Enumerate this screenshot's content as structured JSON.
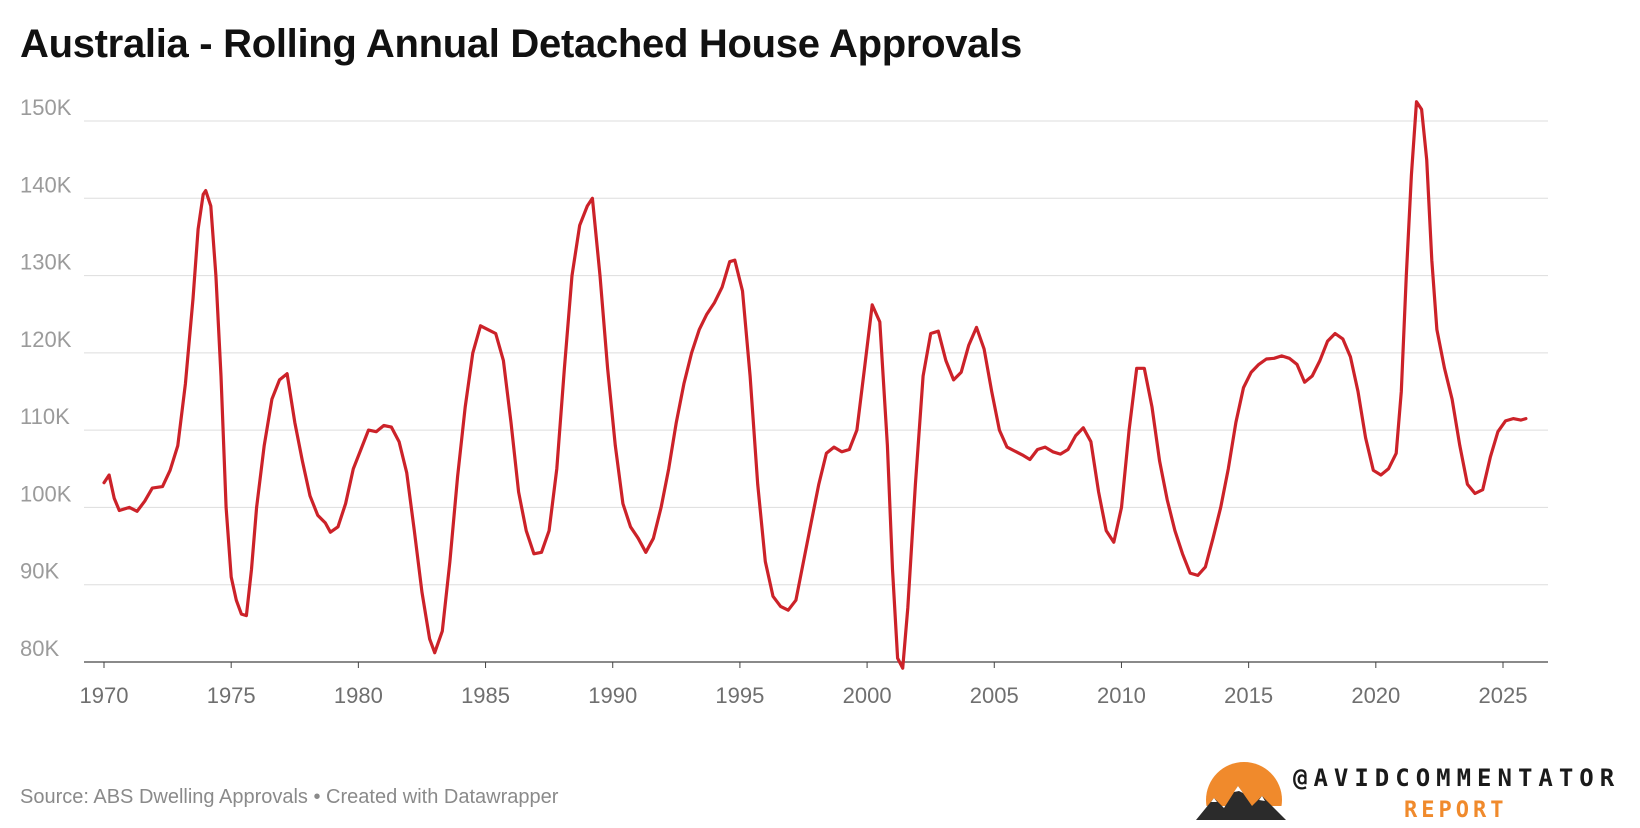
{
  "title": "Australia - Rolling Annual Detached House Approvals",
  "source": "Source: ABS Dwelling Approvals • Created with Datawrapper",
  "logo": {
    "handle": "@AVIDCOMMENTATOR",
    "report": "REPORT",
    "icon": "mountain-sun-icon",
    "sun_color": "#f08a2c"
  },
  "colors": {
    "line": "#cc2229",
    "grid": "#dddddd"
  },
  "chart_data": {
    "type": "line",
    "title": "Australia - Rolling Annual Detached House Approvals",
    "xlabel": "",
    "ylabel": "",
    "xlim": [
      1970,
      2026
    ],
    "ylim": [
      80000,
      150000
    ],
    "grid": true,
    "x_ticks": [
      "1970",
      "1975",
      "1980",
      "1985",
      "1990",
      "1995",
      "2000",
      "2005",
      "2010",
      "2015",
      "2020",
      "2025"
    ],
    "y_ticks": [
      "80K",
      "90K",
      "100K",
      "110K",
      "120K",
      "130K",
      "140K",
      "150K"
    ],
    "series": [
      {
        "color": "#cc2229",
        "points": [
          [
            1970.0,
            103200
          ],
          [
            1970.2,
            104200
          ],
          [
            1970.4,
            101200
          ],
          [
            1970.6,
            99600
          ],
          [
            1971.0,
            100000
          ],
          [
            1971.3,
            99500
          ],
          [
            1971.6,
            100800
          ],
          [
            1971.9,
            102500
          ],
          [
            1972.3,
            102700
          ],
          [
            1972.6,
            104800
          ],
          [
            1972.9,
            108000
          ],
          [
            1973.2,
            116000
          ],
          [
            1973.5,
            127000
          ],
          [
            1973.7,
            136000
          ],
          [
            1973.9,
            140500
          ],
          [
            1974.0,
            141000
          ],
          [
            1974.2,
            139000
          ],
          [
            1974.4,
            130000
          ],
          [
            1974.6,
            117000
          ],
          [
            1974.8,
            100000
          ],
          [
            1975.0,
            91000
          ],
          [
            1975.2,
            88000
          ],
          [
            1975.4,
            86200
          ],
          [
            1975.6,
            86000
          ],
          [
            1975.8,
            92000
          ],
          [
            1976.0,
            100000
          ],
          [
            1976.3,
            108000
          ],
          [
            1976.6,
            114000
          ],
          [
            1976.9,
            116500
          ],
          [
            1977.2,
            117300
          ],
          [
            1977.5,
            111000
          ],
          [
            1977.8,
            106000
          ],
          [
            1978.1,
            101500
          ],
          [
            1978.4,
            99000
          ],
          [
            1978.7,
            98000
          ],
          [
            1978.9,
            96800
          ],
          [
            1979.2,
            97500
          ],
          [
            1979.5,
            100500
          ],
          [
            1979.8,
            105000
          ],
          [
            1980.1,
            107500
          ],
          [
            1980.4,
            110000
          ],
          [
            1980.7,
            109800
          ],
          [
            1981.0,
            110600
          ],
          [
            1981.3,
            110400
          ],
          [
            1981.6,
            108500
          ],
          [
            1981.9,
            104500
          ],
          [
            1982.2,
            97000
          ],
          [
            1982.5,
            89000
          ],
          [
            1982.8,
            83000
          ],
          [
            1983.0,
            81200
          ],
          [
            1983.3,
            84000
          ],
          [
            1983.6,
            93000
          ],
          [
            1983.9,
            104000
          ],
          [
            1984.2,
            113000
          ],
          [
            1984.5,
            120000
          ],
          [
            1984.8,
            123500
          ],
          [
            1985.1,
            123000
          ],
          [
            1985.4,
            122500
          ],
          [
            1985.7,
            119000
          ],
          [
            1986.0,
            111000
          ],
          [
            1986.3,
            102000
          ],
          [
            1986.6,
            97000
          ],
          [
            1986.9,
            94000
          ],
          [
            1987.2,
            94200
          ],
          [
            1987.5,
            97000
          ],
          [
            1987.8,
            105000
          ],
          [
            1988.1,
            118000
          ],
          [
            1988.4,
            130000
          ],
          [
            1988.7,
            136500
          ],
          [
            1989.0,
            139000
          ],
          [
            1989.2,
            140000
          ],
          [
            1989.5,
            130000
          ],
          [
            1989.8,
            118000
          ],
          [
            1990.1,
            108000
          ],
          [
            1990.4,
            100500
          ],
          [
            1990.7,
            97500
          ],
          [
            1991.0,
            96000
          ],
          [
            1991.3,
            94200
          ],
          [
            1991.6,
            96000
          ],
          [
            1991.9,
            100000
          ],
          [
            1992.2,
            105000
          ],
          [
            1992.5,
            111000
          ],
          [
            1992.8,
            116000
          ],
          [
            1993.1,
            120000
          ],
          [
            1993.4,
            123000
          ],
          [
            1993.7,
            125000
          ],
          [
            1994.0,
            126500
          ],
          [
            1994.3,
            128500
          ],
          [
            1994.6,
            131800
          ],
          [
            1994.8,
            132000
          ],
          [
            1995.1,
            128000
          ],
          [
            1995.4,
            117000
          ],
          [
            1995.7,
            103000
          ],
          [
            1996.0,
            93000
          ],
          [
            1996.3,
            88500
          ],
          [
            1996.6,
            87200
          ],
          [
            1996.9,
            86700
          ],
          [
            1997.2,
            88000
          ],
          [
            1997.5,
            93000
          ],
          [
            1997.8,
            98000
          ],
          [
            1998.1,
            103000
          ],
          [
            1998.4,
            107000
          ],
          [
            1998.7,
            107800
          ],
          [
            1999.0,
            107200
          ],
          [
            1999.3,
            107500
          ],
          [
            1999.6,
            110000
          ],
          [
            1999.9,
            118000
          ],
          [
            2000.2,
            126200
          ],
          [
            2000.5,
            124000
          ],
          [
            2000.8,
            108000
          ],
          [
            2001.0,
            92000
          ],
          [
            2001.2,
            80500
          ],
          [
            2001.4,
            79200
          ],
          [
            2001.6,
            87000
          ],
          [
            2001.9,
            103000
          ],
          [
            2002.2,
            117000
          ],
          [
            2002.5,
            122500
          ],
          [
            2002.8,
            122800
          ],
          [
            2003.1,
            119000
          ],
          [
            2003.4,
            116500
          ],
          [
            2003.7,
            117500
          ],
          [
            2004.0,
            121000
          ],
          [
            2004.3,
            123300
          ],
          [
            2004.6,
            120500
          ],
          [
            2004.9,
            115000
          ],
          [
            2005.2,
            110000
          ],
          [
            2005.5,
            107800
          ],
          [
            2005.8,
            107300
          ],
          [
            2006.1,
            106800
          ],
          [
            2006.4,
            106200
          ],
          [
            2006.7,
            107500
          ],
          [
            2007.0,
            107800
          ],
          [
            2007.3,
            107200
          ],
          [
            2007.6,
            106900
          ],
          [
            2007.9,
            107500
          ],
          [
            2008.2,
            109300
          ],
          [
            2008.5,
            110300
          ],
          [
            2008.8,
            108500
          ],
          [
            2009.1,
            102000
          ],
          [
            2009.4,
            97000
          ],
          [
            2009.7,
            95500
          ],
          [
            2010.0,
            100000
          ],
          [
            2010.3,
            110000
          ],
          [
            2010.6,
            118000
          ],
          [
            2010.9,
            118000
          ],
          [
            2011.2,
            113000
          ],
          [
            2011.5,
            106000
          ],
          [
            2011.8,
            101000
          ],
          [
            2012.1,
            97000
          ],
          [
            2012.4,
            94000
          ],
          [
            2012.7,
            91500
          ],
          [
            2013.0,
            91200
          ],
          [
            2013.3,
            92300
          ],
          [
            2013.6,
            96000
          ],
          [
            2013.9,
            100000
          ],
          [
            2014.2,
            105000
          ],
          [
            2014.5,
            111000
          ],
          [
            2014.8,
            115500
          ],
          [
            2015.1,
            117500
          ],
          [
            2015.4,
            118500
          ],
          [
            2015.7,
            119200
          ],
          [
            2016.0,
            119300
          ],
          [
            2016.3,
            119600
          ],
          [
            2016.6,
            119300
          ],
          [
            2016.9,
            118500
          ],
          [
            2017.2,
            116200
          ],
          [
            2017.5,
            117000
          ],
          [
            2017.8,
            119000
          ],
          [
            2018.1,
            121500
          ],
          [
            2018.4,
            122500
          ],
          [
            2018.7,
            121800
          ],
          [
            2019.0,
            119500
          ],
          [
            2019.3,
            115000
          ],
          [
            2019.6,
            109000
          ],
          [
            2019.9,
            104800
          ],
          [
            2020.2,
            104200
          ],
          [
            2020.5,
            105000
          ],
          [
            2020.8,
            107000
          ],
          [
            2021.0,
            115000
          ],
          [
            2021.2,
            130000
          ],
          [
            2021.4,
            143000
          ],
          [
            2021.6,
            152500
          ],
          [
            2021.8,
            151500
          ],
          [
            2022.0,
            145000
          ],
          [
            2022.2,
            132000
          ],
          [
            2022.4,
            123000
          ],
          [
            2022.7,
            118000
          ],
          [
            2023.0,
            114000
          ],
          [
            2023.3,
            108000
          ],
          [
            2023.6,
            103000
          ],
          [
            2023.9,
            101800
          ],
          [
            2024.2,
            102300
          ],
          [
            2024.5,
            106500
          ],
          [
            2024.8,
            109800
          ],
          [
            2025.1,
            111200
          ],
          [
            2025.4,
            111500
          ],
          [
            2025.7,
            111300
          ],
          [
            2025.9,
            111500
          ]
        ]
      }
    ]
  }
}
